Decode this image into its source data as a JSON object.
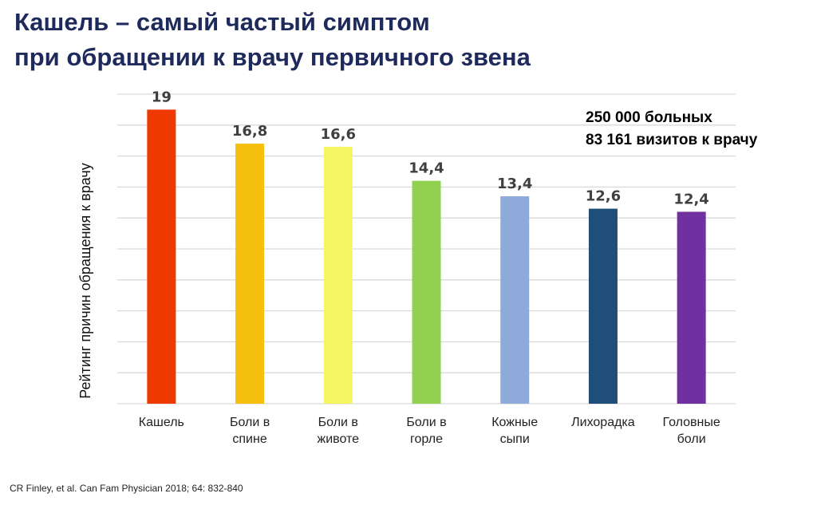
{
  "title": {
    "line1": "Кашель – самый частый симптом",
    "line2": "при обращении к врачу первичного звена"
  },
  "note": {
    "line1": "250 000 больных",
    "line2": "83 161 визитов к врачу"
  },
  "source": "CR Finley, et al. Can Fam Physician 2018; 64: 832-840",
  "chart_data": {
    "type": "bar",
    "title": "",
    "xlabel": "",
    "ylabel": "Рейтинг причин обращения к врачу",
    "ylim": [
      0,
      20
    ],
    "ytick_step": 2,
    "grid": true,
    "categories": [
      [
        "Кашель"
      ],
      [
        "Боли в",
        "спине"
      ],
      [
        "Боли в",
        "животе"
      ],
      [
        "Боли в",
        "горле"
      ],
      [
        "Кожные",
        "сыпи"
      ],
      [
        "Лихорадка"
      ],
      [
        "Головные",
        "боли"
      ]
    ],
    "values": [
      19,
      16.8,
      16.6,
      14.4,
      13.4,
      12.6,
      12.4
    ],
    "value_labels": [
      "19",
      "16,8",
      "16,6",
      "14,4",
      "13,4",
      "12,6",
      "12,4"
    ],
    "colors": [
      "#ee3a00",
      "#f5bf0e",
      "#f4f561",
      "#92d050",
      "#8eaadb",
      "#1f4e79",
      "#7030a0"
    ]
  }
}
